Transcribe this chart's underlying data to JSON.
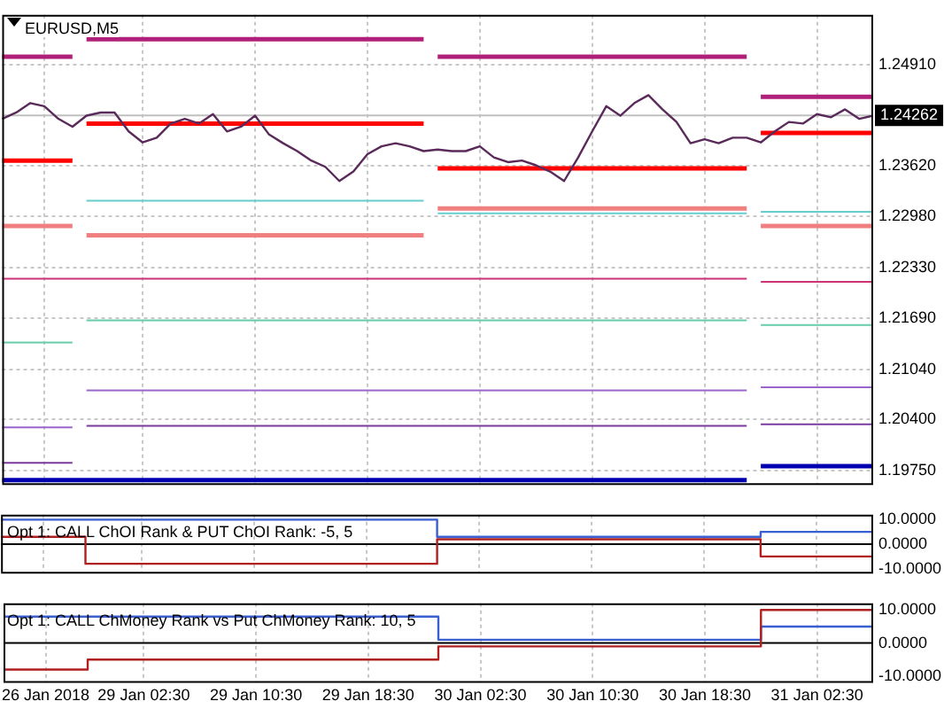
{
  "chart_data": [
    {
      "type": "line",
      "title": "EURUSD,M5",
      "categories": [
        null,
        null,
        null,
        null,
        null,
        null,
        null,
        null,
        null,
        null,
        null,
        null,
        null,
        null,
        null,
        null,
        null,
        null,
        null,
        null,
        null,
        null,
        null,
        null,
        null,
        null,
        null,
        null,
        null,
        null,
        null,
        null,
        null,
        null,
        null,
        null,
        null,
        null,
        null,
        null,
        null,
        null,
        null,
        null,
        null,
        null,
        null,
        null,
        null,
        null,
        null,
        null,
        null,
        null,
        null,
        null,
        null,
        null,
        null,
        null,
        null,
        null,
        null
      ],
      "series": [
        {
          "color": "#b0207a",
          "values": [
            1.2501,
            1.2501,
            1.2501,
            1.2501,
            1.2501,
            1.2501,
            1.2523,
            1.2523,
            1.2523,
            1.2523,
            1.2523,
            1.2523,
            1.2523,
            1.2523,
            1.2523,
            1.2523,
            1.2523,
            1.2523,
            1.2523,
            1.2523,
            1.2523,
            1.2523,
            1.2523,
            1.2523,
            1.2523,
            1.2523,
            1.2523,
            1.2523,
            1.2523,
            1.2523,
            1.2523,
            1.2501,
            1.2501,
            1.2501,
            1.2501,
            1.2501,
            1.2501,
            1.2501,
            1.2501,
            1.2501,
            1.2501,
            1.2501,
            1.2501,
            1.2501,
            1.2501,
            1.2501,
            1.2501,
            1.2501,
            1.2501,
            1.2501,
            1.2501,
            1.2501,
            1.2501,
            1.2501,
            1.245,
            1.245,
            1.245,
            1.245,
            1.245,
            1.245,
            1.245,
            1.245,
            1.245
          ]
        },
        {
          "color": "#ff0000",
          "values": [
            1.2369,
            1.2369,
            1.2369,
            1.2369,
            1.2369,
            1.2369,
            1.2416,
            1.2416,
            1.2416,
            1.2416,
            1.2416,
            1.2416,
            1.2416,
            1.2416,
            1.2416,
            1.2416,
            1.2416,
            1.2416,
            1.2416,
            1.2416,
            1.2416,
            1.2416,
            1.2416,
            1.2416,
            1.2416,
            1.2416,
            1.2416,
            1.2416,
            1.2416,
            1.2416,
            1.2416,
            1.2359,
            1.2359,
            1.2359,
            1.2359,
            1.2359,
            1.2359,
            1.2359,
            1.2359,
            1.2359,
            1.2359,
            1.2359,
            1.2359,
            1.2359,
            1.2359,
            1.2359,
            1.2359,
            1.2359,
            1.2359,
            1.2359,
            1.2359,
            1.2359,
            1.2359,
            1.2359,
            1.2404,
            1.2404,
            1.2404,
            1.2404,
            1.2404,
            1.2404,
            1.2404,
            1.2404,
            1.2404
          ]
        },
        {
          "color": "#f08080",
          "values": [
            1.2286,
            1.2286,
            1.2286,
            1.2286,
            1.2286,
            1.2286,
            1.2274,
            1.2274,
            1.2274,
            1.2274,
            1.2274,
            1.2274,
            1.2274,
            1.2274,
            1.2274,
            1.2274,
            1.2274,
            1.2274,
            1.2274,
            1.2274,
            1.2274,
            1.2274,
            1.2274,
            1.2274,
            1.2274,
            1.2274,
            1.2274,
            1.2274,
            1.2274,
            1.2274,
            1.2274,
            1.2308,
            1.2308,
            1.2308,
            1.2308,
            1.2308,
            1.2308,
            1.2308,
            1.2308,
            1.2308,
            1.2308,
            1.2308,
            1.2308,
            1.2308,
            1.2308,
            1.2308,
            1.2308,
            1.2308,
            1.2308,
            1.2308,
            1.2308,
            1.2308,
            1.2308,
            1.2308,
            1.2286,
            1.2286,
            1.2286,
            1.2286,
            1.2286,
            1.2286,
            1.2286,
            1.2286,
            1.2286
          ]
        },
        {
          "color": "#66cccc",
          "values": [
            null,
            null,
            null,
            null,
            null,
            null,
            1.2318,
            1.2318,
            1.2318,
            1.2318,
            1.2318,
            1.2318,
            1.2318,
            1.2318,
            1.2318,
            1.2318,
            1.2318,
            1.2318,
            1.2318,
            1.2318,
            1.2318,
            1.2318,
            1.2318,
            1.2318,
            1.2318,
            1.2318,
            1.2318,
            1.2318,
            1.2318,
            1.2318,
            1.2318,
            1.2302,
            1.2302,
            1.2302,
            1.2302,
            1.2302,
            1.2302,
            1.2302,
            1.2302,
            1.2302,
            1.2302,
            1.2302,
            1.2302,
            1.2302,
            1.2302,
            1.2302,
            1.2302,
            1.2302,
            1.2302,
            1.2302,
            1.2302,
            1.2302,
            1.2302,
            1.2302,
            1.2304,
            1.2304,
            1.2304,
            1.2304,
            1.2304,
            1.2304,
            1.2304,
            1.2304,
            1.2304
          ]
        },
        {
          "color": "#cc3377",
          "values": [
            1.2219,
            1.2219,
            1.2219,
            1.2219,
            1.2219,
            1.2219,
            1.2219,
            1.2219,
            1.2219,
            1.2219,
            1.2219,
            1.2219,
            1.2219,
            1.2219,
            1.2219,
            1.2219,
            1.2219,
            1.2219,
            1.2219,
            1.2219,
            1.2219,
            1.2219,
            1.2219,
            1.2219,
            1.2219,
            1.2219,
            1.2219,
            1.2219,
            1.2219,
            1.2219,
            1.2219,
            1.2219,
            1.2219,
            1.2219,
            1.2219,
            1.2219,
            1.2219,
            1.2219,
            1.2219,
            1.2219,
            1.2219,
            1.2219,
            1.2219,
            1.2219,
            1.2219,
            1.2219,
            1.2219,
            1.2219,
            1.2219,
            1.2219,
            1.2219,
            1.2219,
            1.2219,
            1.2219,
            1.2215,
            1.2215,
            1.2215,
            1.2215,
            1.2215,
            1.2215,
            1.2215,
            1.2215,
            1.2215
          ]
        },
        {
          "color": "#66ccaa",
          "values": [
            1.2138,
            1.2138,
            1.2138,
            1.2138,
            1.2138,
            1.2138,
            1.2166,
            1.2166,
            1.2166,
            1.2166,
            1.2166,
            1.2166,
            1.2166,
            1.2166,
            1.2166,
            1.2166,
            1.2166,
            1.2166,
            1.2166,
            1.2166,
            1.2166,
            1.2166,
            1.2166,
            1.2166,
            1.2166,
            1.2166,
            1.2166,
            1.2166,
            1.2166,
            1.2166,
            1.2166,
            1.2166,
            1.2166,
            1.2166,
            1.2166,
            1.2166,
            1.2166,
            1.2166,
            1.2166,
            1.2166,
            1.2166,
            1.2166,
            1.2166,
            1.2166,
            1.2166,
            1.2166,
            1.2166,
            1.2166,
            1.2166,
            1.2166,
            1.2166,
            1.2166,
            1.2166,
            1.2166,
            1.216,
            1.216,
            1.216,
            1.216,
            1.216,
            1.216,
            1.216,
            1.216,
            1.216
          ]
        },
        {
          "color": "#9966cc",
          "values": [
            1.203,
            1.203,
            1.203,
            1.203,
            1.203,
            1.203,
            1.2077,
            1.2077,
            1.2077,
            1.2077,
            1.2077,
            1.2077,
            1.2077,
            1.2077,
            1.2077,
            1.2077,
            1.2077,
            1.2077,
            1.2077,
            1.2077,
            1.2077,
            1.2077,
            1.2077,
            1.2077,
            1.2077,
            1.2077,
            1.2077,
            1.2077,
            1.2077,
            1.2077,
            1.2077,
            1.2077,
            1.2077,
            1.2077,
            1.2077,
            1.2077,
            1.2077,
            1.2077,
            1.2077,
            1.2077,
            1.2077,
            1.2077,
            1.2077,
            1.2077,
            1.2077,
            1.2077,
            1.2077,
            1.2077,
            1.2077,
            1.2077,
            1.2077,
            1.2077,
            1.2077,
            1.2077,
            1.2081,
            1.2081,
            1.2081,
            1.2081,
            1.2081,
            1.2081,
            1.2081,
            1.2081,
            1.2081
          ]
        },
        {
          "color": "#7a3aa0",
          "values": [
            1.1985,
            1.1985,
            1.1985,
            1.1985,
            1.1985,
            1.1985,
            1.2032,
            1.2032,
            1.2032,
            1.2032,
            1.2032,
            1.2032,
            1.2032,
            1.2032,
            1.2032,
            1.2032,
            1.2032,
            1.2032,
            1.2032,
            1.2032,
            1.2032,
            1.2032,
            1.2032,
            1.2032,
            1.2032,
            1.2032,
            1.2032,
            1.2032,
            1.2032,
            1.2032,
            1.2032,
            1.2032,
            1.2032,
            1.2032,
            1.2032,
            1.2032,
            1.2032,
            1.2032,
            1.2032,
            1.2032,
            1.2032,
            1.2032,
            1.2032,
            1.2032,
            1.2032,
            1.2032,
            1.2032,
            1.2032,
            1.2032,
            1.2032,
            1.2032,
            1.2032,
            1.2032,
            1.2032,
            1.2034,
            1.2034,
            1.2034,
            1.2034,
            1.2034,
            1.2034,
            1.2034,
            1.2034,
            1.2034
          ]
        },
        {
          "color": "#0000b0",
          "values": [
            1.1963,
            1.1963,
            1.1963,
            1.1963,
            1.1963,
            1.1963,
            1.1963,
            1.1963,
            1.1963,
            1.1963,
            1.1963,
            1.1963,
            1.1963,
            1.1963,
            1.1963,
            1.1963,
            1.1963,
            1.1963,
            1.1963,
            1.1963,
            1.1963,
            1.1963,
            1.1963,
            1.1963,
            1.1963,
            1.1963,
            1.1963,
            1.1963,
            1.1963,
            1.1963,
            1.1963,
            1.1963,
            1.1963,
            1.1963,
            1.1963,
            1.1963,
            1.1963,
            1.1963,
            1.1963,
            1.1963,
            1.1963,
            1.1963,
            1.1963,
            1.1963,
            1.1963,
            1.1963,
            1.1963,
            1.1963,
            1.1963,
            1.1963,
            1.1963,
            1.1963,
            1.1963,
            1.1963,
            1.1981,
            1.1981,
            1.1981,
            1.1981,
            1.1981,
            1.1981,
            1.1981,
            1.1981,
            1.1981
          ]
        },
        {
          "color": "#5a2a5a",
          "values": [
            1.2422,
            1.243,
            1.2442,
            1.2438,
            1.2422,
            1.2412,
            1.2426,
            1.243,
            1.243,
            1.2406,
            1.2392,
            1.2398,
            1.2416,
            1.2422,
            1.2416,
            1.2428,
            1.2406,
            1.2412,
            1.2426,
            1.2402,
            1.2391,
            1.2381,
            1.2369,
            1.2361,
            1.2343,
            1.2355,
            1.2377,
            1.2387,
            1.2391,
            1.2387,
            1.2381,
            1.2383,
            1.2381,
            1.2381,
            1.2387,
            1.2373,
            1.2367,
            1.2369,
            1.2363,
            1.2355,
            1.2343,
            1.2373,
            1.2406,
            1.2438,
            1.2426,
            1.2442,
            1.2452,
            1.2434,
            1.2418,
            1.2391,
            1.2396,
            1.2391,
            1.2398,
            1.2398,
            1.2392,
            1.2406,
            1.2418,
            1.2416,
            1.2428,
            1.2424,
            1.2434,
            1.2422,
            1.2426
          ]
        }
      ],
      "ylim": [
        1.1957,
        1.2554
      ],
      "yticks": [
        {
          "value": 1.2491,
          "label": "1.24910"
        },
        {
          "value": 1.2362,
          "label": "1.23620"
        },
        {
          "value": 1.2298,
          "label": "1.22980"
        },
        {
          "value": 1.2233,
          "label": "1.22330"
        },
        {
          "value": 1.2169,
          "label": "1.21690"
        },
        {
          "value": 1.2104,
          "label": "1.21040"
        },
        {
          "value": 1.204,
          "label": "1.20400"
        },
        {
          "value": 1.1975,
          "label": "1.19750"
        }
      ],
      "ref_lines": [
        {
          "axis": "y",
          "value": 1.24262,
          "label": "1.24262",
          "color": "#c0c0c0"
        }
      ],
      "grid": true,
      "tick_labels": "y"
    },
    {
      "type": "step",
      "title": "Opt 1: CALL ChOI Rank & PUT ChOI Rank: -5, 5",
      "categories": [
        null,
        null,
        null,
        null,
        null,
        null,
        null,
        null,
        null,
        null,
        null,
        null,
        null,
        null,
        null,
        null,
        null,
        null,
        null,
        null,
        null,
        null,
        null,
        null,
        null,
        null,
        null,
        null,
        null,
        null,
        null,
        null,
        null,
        null,
        null,
        null,
        null,
        null,
        null,
        null,
        null,
        null,
        null,
        null,
        null,
        null,
        null,
        null,
        null,
        null,
        null,
        null,
        null,
        null,
        null,
        null,
        null,
        null,
        null,
        null,
        null,
        null,
        null
      ],
      "series": [
        {
          "color": "#3a5fd0",
          "values": [
            10,
            10,
            10,
            10,
            10,
            10,
            10,
            10,
            10,
            10,
            10,
            10,
            10,
            10,
            10,
            10,
            10,
            10,
            10,
            10,
            10,
            10,
            10,
            10,
            10,
            10,
            10,
            10,
            10,
            10,
            10,
            3,
            3,
            3,
            3,
            3,
            3,
            3,
            3,
            3,
            3,
            3,
            3,
            3,
            3,
            3,
            3,
            3,
            3,
            3,
            3,
            3,
            3,
            3,
            5,
            5,
            5,
            5,
            5,
            5,
            5,
            5,
            5
          ]
        },
        {
          "color": "#b02020",
          "values": [
            3,
            3,
            3,
            3,
            3,
            3,
            -8,
            -8,
            -8,
            -8,
            -8,
            -8,
            -8,
            -8,
            -8,
            -8,
            -8,
            -8,
            -8,
            -8,
            -8,
            -8,
            -8,
            -8,
            -8,
            -8,
            -8,
            -8,
            -8,
            -8,
            -8,
            2,
            2,
            2,
            2,
            2,
            2,
            2,
            2,
            2,
            2,
            2,
            2,
            2,
            2,
            2,
            2,
            2,
            2,
            2,
            2,
            2,
            2,
            2,
            -5,
            -5,
            -5,
            -5,
            -5,
            -5,
            -5,
            -5,
            -5
          ]
        }
      ],
      "ylim": [
        -12,
        12
      ],
      "yticks": [
        {
          "value": 10,
          "label": "10.0000"
        },
        {
          "value": 0,
          "label": "0.0000"
        },
        {
          "value": -10,
          "label": "-10.0000"
        }
      ],
      "ref_lines": [
        {
          "axis": "y",
          "value": 0,
          "color": "#000000"
        }
      ],
      "grid": "x",
      "tick_labels": "y"
    },
    {
      "type": "step",
      "title": "Opt 1: CALL ChMoney Rank vs Put ChMoney Rank: 10, 5",
      "categories": [
        null,
        null,
        null,
        "26 Jan 2018",
        null,
        null,
        null,
        null,
        null,
        null,
        "29 Jan 02:30",
        null,
        null,
        null,
        null,
        null,
        null,
        null,
        "29 Jan 10:30",
        null,
        null,
        null,
        null,
        null,
        null,
        null,
        "29 Jan 18:30",
        null,
        null,
        null,
        null,
        null,
        null,
        null,
        "30 Jan 02:30",
        null,
        null,
        null,
        null,
        null,
        null,
        null,
        "30 Jan 10:30",
        null,
        null,
        null,
        null,
        null,
        null,
        null,
        "30 Jan 18:30",
        null,
        null,
        null,
        null,
        null,
        null,
        null,
        "31 Jan 02:30",
        null,
        null,
        null,
        null
      ],
      "series": [
        {
          "color": "#3a5fd0",
          "values": [
            8,
            8,
            8,
            8,
            8,
            8,
            8,
            8,
            8,
            8,
            8,
            8,
            8,
            8,
            8,
            8,
            8,
            8,
            8,
            8,
            8,
            8,
            8,
            8,
            8,
            8,
            8,
            8,
            8,
            8,
            8,
            1,
            1,
            1,
            1,
            1,
            1,
            1,
            1,
            1,
            1,
            1,
            1,
            1,
            1,
            1,
            1,
            1,
            1,
            1,
            1,
            1,
            1,
            1,
            5,
            5,
            5,
            5,
            5,
            5,
            5,
            5,
            5
          ]
        },
        {
          "color": "#b02020",
          "values": [
            -8,
            -8,
            -8,
            -8,
            -8,
            -8,
            -5,
            -5,
            -5,
            -5,
            -5,
            -5,
            -5,
            -5,
            -5,
            -5,
            -5,
            -5,
            -5,
            -5,
            -5,
            -5,
            -5,
            -5,
            -5,
            -5,
            -5,
            -5,
            -5,
            -5,
            -5,
            -1,
            -1,
            -1,
            -1,
            -1,
            -1,
            -1,
            -1,
            -1,
            -1,
            -1,
            -1,
            -1,
            -1,
            -1,
            -1,
            -1,
            -1,
            -1,
            -1,
            -1,
            -1,
            -1,
            10,
            10,
            10,
            10,
            10,
            10,
            10,
            10,
            10
          ]
        }
      ],
      "ylim": [
        -12,
        12
      ],
      "yticks": [
        {
          "value": 10,
          "label": "10.0000"
        },
        {
          "value": 0,
          "label": "0.0000"
        },
        {
          "value": -10,
          "label": "-10.0000"
        }
      ],
      "ref_lines": [
        {
          "axis": "y",
          "value": 0,
          "color": "#000000"
        }
      ],
      "grid": "x"
    }
  ]
}
